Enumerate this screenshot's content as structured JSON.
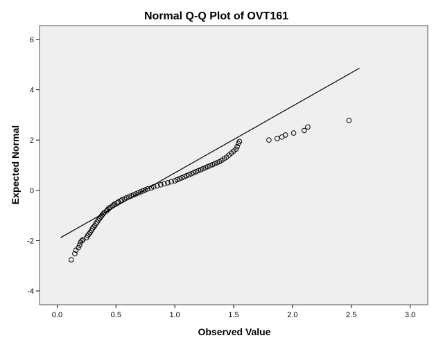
{
  "chart_data": {
    "type": "scatter",
    "title": "Normal Q-Q Plot of OVT161",
    "xlabel": "Observed Value",
    "ylabel": "Expected Normal",
    "xlim": [
      -0.15,
      3.15
    ],
    "ylim": [
      -4.55,
      6.55
    ],
    "x_ticks": [
      "0.0",
      "0.5",
      "1.0",
      "1.5",
      "2.0",
      "2.5",
      "3.0"
    ],
    "y_ticks": [
      "-4",
      "-2",
      "0",
      "2",
      "4",
      "6"
    ],
    "grid": false,
    "reference_line": {
      "x": [
        0.03,
        2.57
      ],
      "y": [
        -1.88,
        4.86
      ]
    },
    "points": [
      [
        0.12,
        -2.76
      ],
      [
        0.15,
        -2.52
      ],
      [
        0.16,
        -2.38
      ],
      [
        0.18,
        -2.28
      ],
      [
        0.19,
        -2.18
      ],
      [
        0.2,
        -2.06
      ],
      [
        0.21,
        -2.0
      ],
      [
        0.22,
        -1.96
      ],
      [
        0.25,
        -1.88
      ],
      [
        0.26,
        -1.8
      ],
      [
        0.27,
        -1.74
      ],
      [
        0.28,
        -1.68
      ],
      [
        0.29,
        -1.6
      ],
      [
        0.3,
        -1.52
      ],
      [
        0.31,
        -1.46
      ],
      [
        0.32,
        -1.4
      ],
      [
        0.33,
        -1.32
      ],
      [
        0.34,
        -1.26
      ],
      [
        0.35,
        -1.18
      ],
      [
        0.36,
        -1.12
      ],
      [
        0.37,
        -1.06
      ],
      [
        0.38,
        -1.0
      ],
      [
        0.39,
        -0.94
      ],
      [
        0.4,
        -0.88
      ],
      [
        0.42,
        -0.82
      ],
      [
        0.43,
        -0.76
      ],
      [
        0.44,
        -0.72
      ],
      [
        0.45,
        -0.68
      ],
      [
        0.47,
        -0.62
      ],
      [
        0.48,
        -0.58
      ],
      [
        0.49,
        -0.54
      ],
      [
        0.51,
        -0.5
      ],
      [
        0.52,
        -0.46
      ],
      [
        0.54,
        -0.42
      ],
      [
        0.55,
        -0.38
      ],
      [
        0.57,
        -0.34
      ],
      [
        0.59,
        -0.3
      ],
      [
        0.61,
        -0.26
      ],
      [
        0.63,
        -0.22
      ],
      [
        0.65,
        -0.18
      ],
      [
        0.67,
        -0.14
      ],
      [
        0.69,
        -0.1
      ],
      [
        0.71,
        -0.06
      ],
      [
        0.73,
        -0.02
      ],
      [
        0.75,
        0.02
      ],
      [
        0.77,
        0.06
      ],
      [
        0.8,
        0.1
      ],
      [
        0.82,
        0.14
      ],
      [
        0.85,
        0.18
      ],
      [
        0.88,
        0.22
      ],
      [
        0.91,
        0.26
      ],
      [
        0.94,
        0.3
      ],
      [
        0.97,
        0.34
      ],
      [
        1.0,
        0.38
      ],
      [
        1.02,
        0.42
      ],
      [
        1.04,
        0.46
      ],
      [
        1.06,
        0.5
      ],
      [
        1.08,
        0.54
      ],
      [
        1.1,
        0.58
      ],
      [
        1.12,
        0.62
      ],
      [
        1.14,
        0.66
      ],
      [
        1.16,
        0.7
      ],
      [
        1.18,
        0.74
      ],
      [
        1.2,
        0.78
      ],
      [
        1.22,
        0.82
      ],
      [
        1.24,
        0.86
      ],
      [
        1.26,
        0.9
      ],
      [
        1.28,
        0.94
      ],
      [
        1.3,
        0.98
      ],
      [
        1.32,
        1.02
      ],
      [
        1.34,
        1.06
      ],
      [
        1.36,
        1.1
      ],
      [
        1.38,
        1.14
      ],
      [
        1.4,
        1.2
      ],
      [
        1.42,
        1.26
      ],
      [
        1.44,
        1.32
      ],
      [
        1.46,
        1.4
      ],
      [
        1.48,
        1.48
      ],
      [
        1.5,
        1.56
      ],
      [
        1.52,
        1.64
      ],
      [
        1.53,
        1.74
      ],
      [
        1.54,
        1.86
      ],
      [
        1.55,
        1.94
      ],
      [
        1.8,
        2.0
      ],
      [
        1.87,
        2.06
      ],
      [
        1.91,
        2.12
      ],
      [
        1.94,
        2.2
      ],
      [
        2.01,
        2.28
      ],
      [
        2.1,
        2.38
      ],
      [
        2.13,
        2.52
      ],
      [
        2.48,
        2.78
      ]
    ]
  }
}
